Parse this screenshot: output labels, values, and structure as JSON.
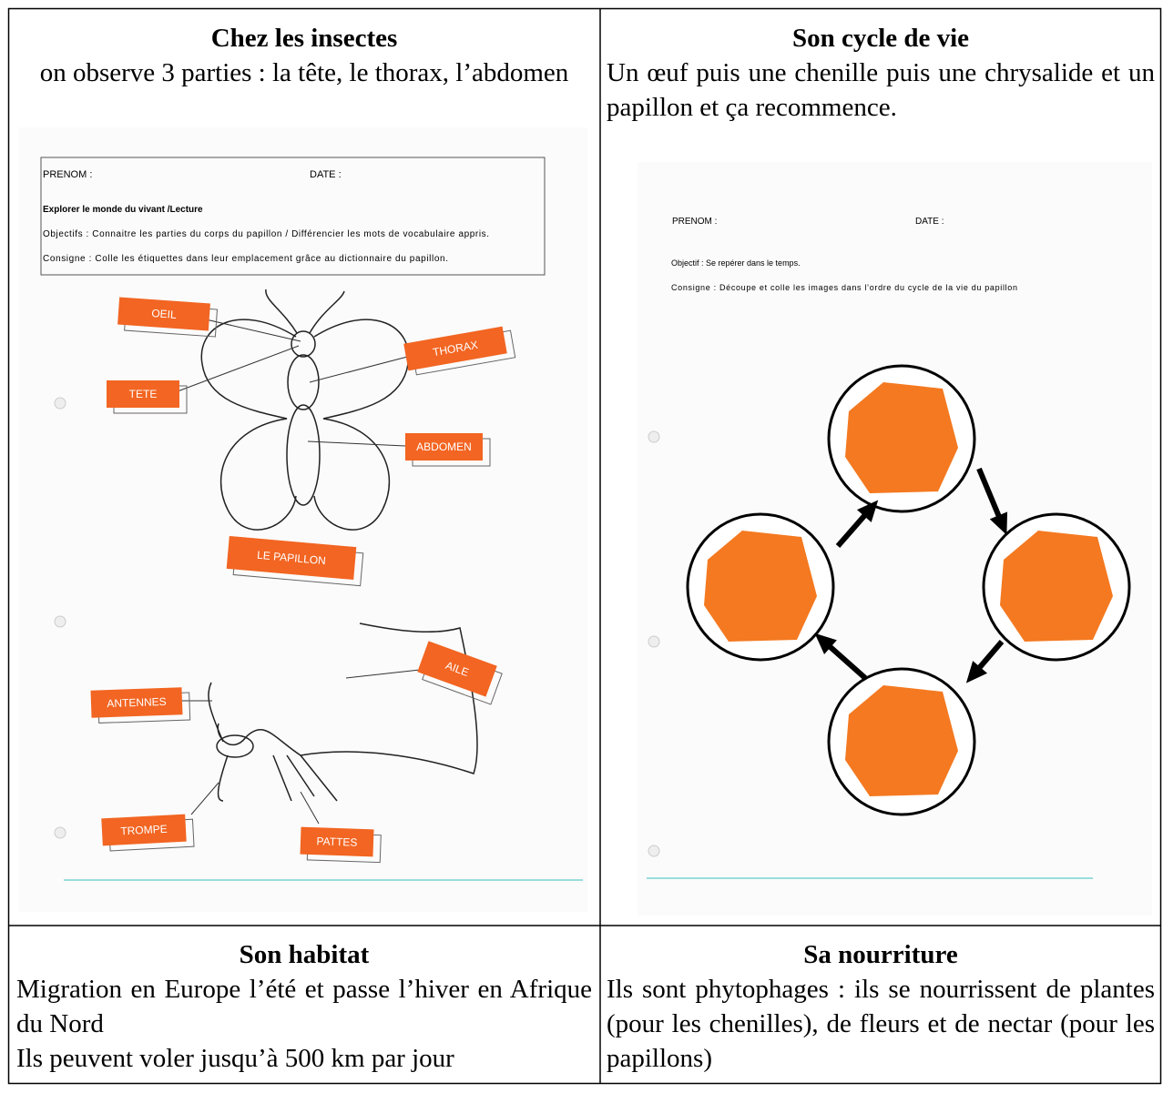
{
  "cells": [
    {
      "title": "Chez les insectes",
      "paragraphs": [
        "on observe 3 parties : la tête, le thorax, l’abdomen"
      ],
      "worksheet": {
        "prenom": "PRENOM :",
        "date": "DATE :",
        "subject": "Explorer le monde du vivant /Lecture",
        "objective": "Objectifs : Connaitre les parties du corps du papillon / Différencier les mots de vocabulaire appris.",
        "instruction": "Consigne : Colle les étiquettes dans leur emplacement grâce au dictionnaire du papillon.",
        "labels": [
          "OEIL",
          "TETE",
          "THORAX",
          "ABDOMEN",
          "LE PAPILLON",
          "AILE",
          "ANTENNES",
          "TROMPE",
          "PATTES"
        ]
      }
    },
    {
      "title": "Son cycle de vie",
      "paragraphs": [
        "Un œuf puis une chenille puis une chrysalide et un papillon et ça recommence."
      ],
      "worksheet": {
        "prenom": "PRENOM :",
        "date": "DATE :",
        "objective": "Objectif : Se repérer dans le temps.",
        "instruction": "Consigne : Découpe et colle les images dans l’ordre du cycle de la vie du papillon"
      }
    },
    {
      "title": "Son habitat",
      "paragraphs": [
        "Migration en Europe l’été et passe l’hiver en Afrique du Nord",
        "Ils peuvent voler jusqu’à 500 km par jour"
      ]
    },
    {
      "title": "Sa nourriture",
      "paragraphs": [
        "Ils sont phytophages : ils se nourrissent de plantes (pour les chenilles), de fleurs et de nectar (pour les papillons)"
      ]
    }
  ]
}
